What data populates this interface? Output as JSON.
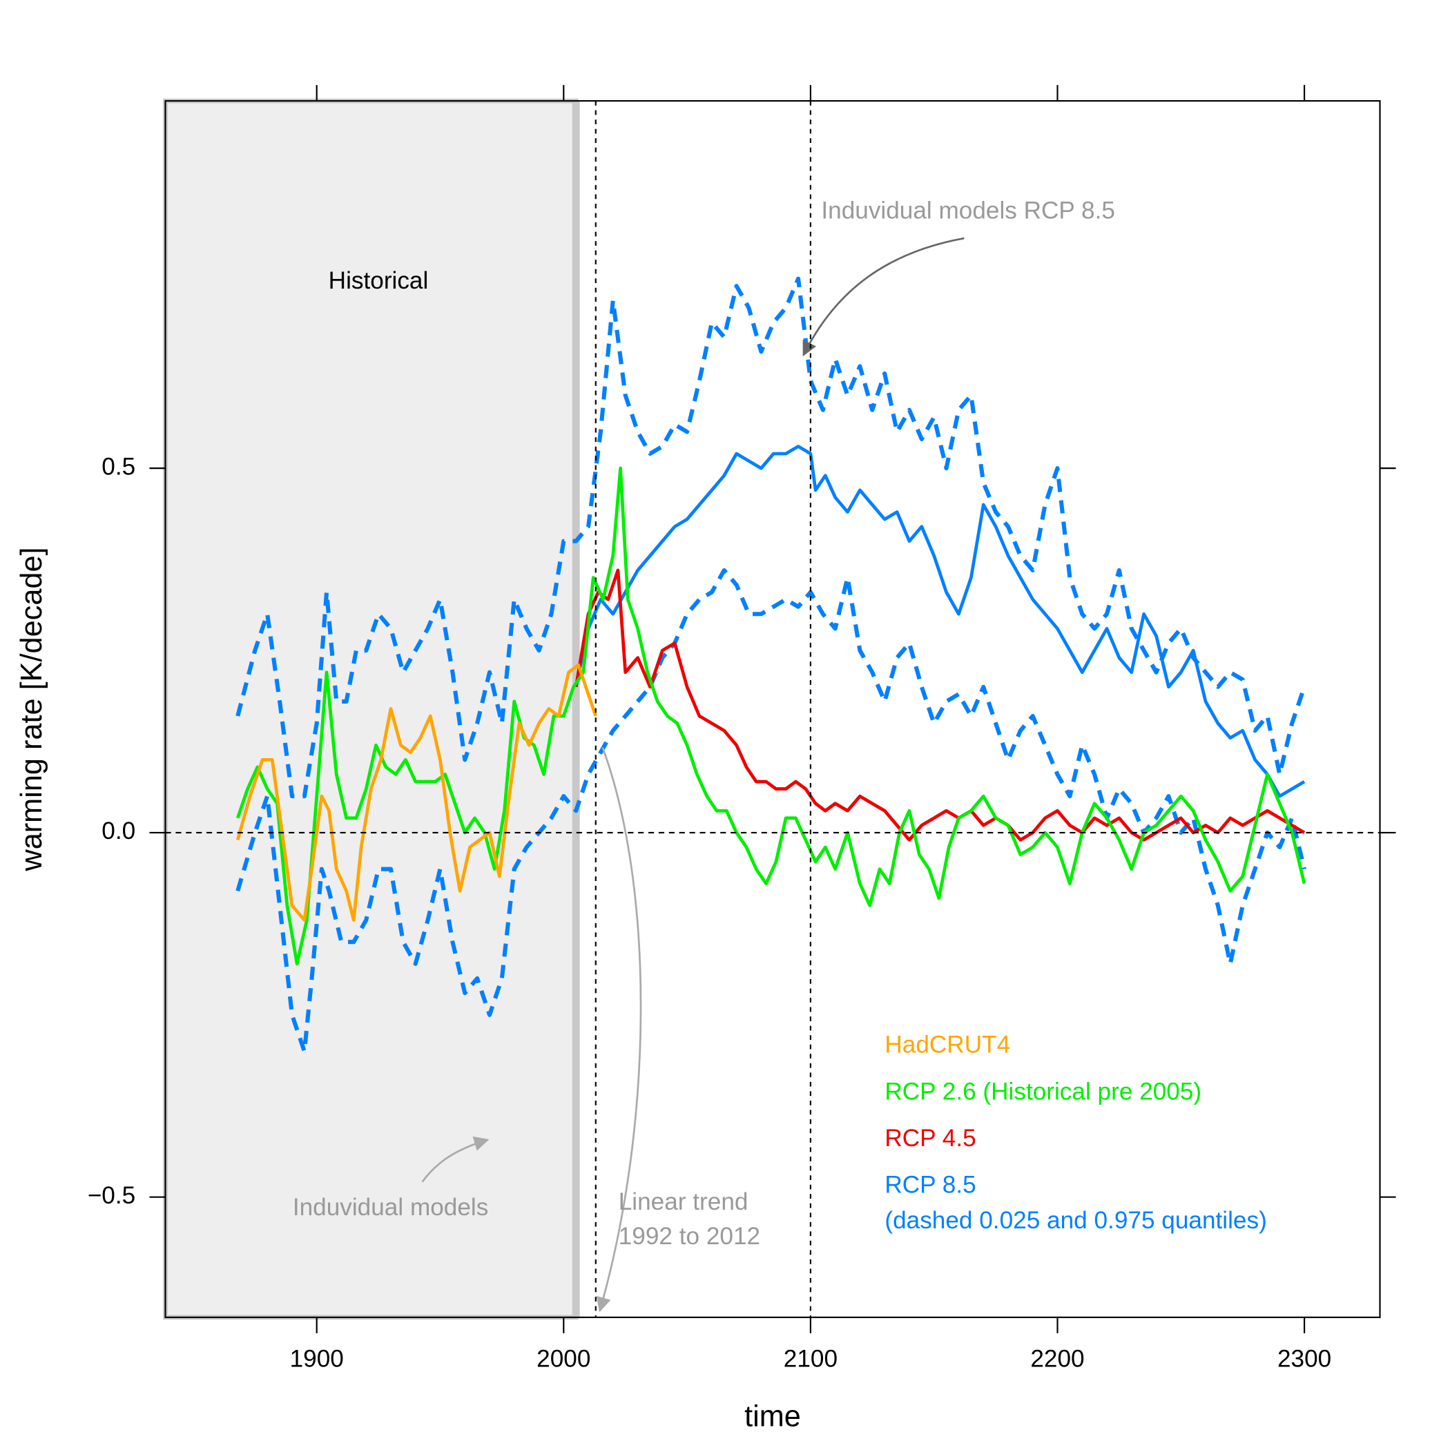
{
  "chart_data": {
    "type": "line",
    "xlabel": "time",
    "ylabel": "warming rate [K/decade]",
    "xlim": [
      1838.7,
      2330.6
    ],
    "ylim": [
      -0.665,
      1.004
    ],
    "xticks": [
      1900,
      2000,
      2100,
      2200,
      2300
    ],
    "yticks": [
      {
        "value": -0.5,
        "label": "−0.5"
      },
      {
        "value": 0,
        "label": "0.0"
      },
      0.5
    ],
    "hline": 0,
    "vlines": [
      2013,
      2100
    ],
    "shaded_until": 2005,
    "annotations": {
      "historical": "Historical",
      "models": "Induvidual models",
      "models_rcp85": "Induvidual models RCP 8.5",
      "trend": [
        "Linear trend",
        "1992 to 2012"
      ],
      "quantile_note": "(dashed 0.025 and 0.975 quantiles)"
    },
    "series": [
      {
        "name": "HadCRUT4",
        "color": "#ffa500",
        "x": [
          1868,
          1873,
          1878,
          1882,
          1886,
          1890,
          1895,
          1898,
          1902,
          1905,
          1908,
          1912,
          1915,
          1918,
          1922,
          1926,
          1930,
          1934,
          1938,
          1942,
          1946,
          1950,
          1954,
          1958,
          1962,
          1966,
          1970,
          1974,
          1978,
          1982,
          1986,
          1990,
          1994,
          1998,
          2002,
          2006,
          2010,
          2013
        ],
        "values": [
          -0.01,
          0.05,
          0.1,
          0.1,
          0.0,
          -0.1,
          -0.12,
          -0.05,
          0.05,
          0.03,
          -0.05,
          -0.08,
          -0.12,
          -0.02,
          0.06,
          0.1,
          0.17,
          0.12,
          0.11,
          0.13,
          0.16,
          0.1,
          0.0,
          -0.08,
          -0.02,
          -0.01,
          0.0,
          -0.06,
          0.05,
          0.15,
          0.12,
          0.15,
          0.17,
          0.16,
          0.22,
          0.23,
          0.19,
          0.16
        ]
      },
      {
        "name": "RCP 2.6 (Historical pre 2005)",
        "color": "#00ee00",
        "x": [
          1868,
          1872,
          1876,
          1880,
          1884,
          1888,
          1892,
          1896,
          1900,
          1904,
          1908,
          1912,
          1916,
          1920,
          1924,
          1928,
          1932,
          1936,
          1940,
          1944,
          1948,
          1952,
          1956,
          1960,
          1964,
          1968,
          1972,
          1976,
          1980,
          1984,
          1988,
          1992,
          1996,
          2000,
          2004,
          2008,
          2012,
          2016,
          2020,
          2023,
          2026,
          2030,
          2034,
          2038,
          2042,
          2046,
          2050,
          2054,
          2058,
          2062,
          2066,
          2070,
          2074,
          2078,
          2082,
          2086,
          2090,
          2094,
          2098,
          2102,
          2106,
          2110,
          2115,
          2120,
          2124,
          2128,
          2132,
          2136,
          2140,
          2144,
          2148,
          2152,
          2156,
          2160,
          2165,
          2170,
          2175,
          2180,
          2185,
          2190,
          2195,
          2200,
          2205,
          2210,
          2215,
          2220,
          2225,
          2230,
          2235,
          2240,
          2245,
          2250,
          2255,
          2260,
          2265,
          2270,
          2275,
          2280,
          2285,
          2290,
          2295,
          2300
        ],
        "values": [
          0.02,
          0.06,
          0.09,
          0.06,
          0.04,
          -0.1,
          -0.18,
          -0.12,
          0.05,
          0.22,
          0.08,
          0.02,
          0.02,
          0.06,
          0.12,
          0.09,
          0.08,
          0.1,
          0.07,
          0.07,
          0.07,
          0.08,
          0.04,
          0.0,
          0.02,
          0.0,
          -0.05,
          0.03,
          0.18,
          0.13,
          0.12,
          0.08,
          0.16,
          0.16,
          0.2,
          0.22,
          0.35,
          0.32,
          0.38,
          0.5,
          0.32,
          0.28,
          0.22,
          0.18,
          0.16,
          0.15,
          0.12,
          0.08,
          0.05,
          0.03,
          0.03,
          0.0,
          -0.02,
          -0.05,
          -0.07,
          -0.04,
          0.02,
          0.02,
          -0.01,
          -0.04,
          -0.02,
          -0.05,
          0.0,
          -0.07,
          -0.1,
          -0.05,
          -0.07,
          0.0,
          0.03,
          -0.03,
          -0.05,
          -0.09,
          -0.02,
          0.02,
          0.03,
          0.05,
          0.02,
          0.01,
          -0.03,
          -0.02,
          0.0,
          -0.02,
          -0.07,
          0.0,
          0.04,
          0.02,
          -0.01,
          -0.05,
          0.0,
          0.01,
          0.03,
          0.05,
          0.03,
          -0.01,
          -0.04,
          -0.08,
          -0.06,
          0.01,
          0.08,
          0.04,
          0.0,
          -0.07
        ]
      },
      {
        "name": "RCP 4.5",
        "color": "#ee0000",
        "x": [
          2005,
          2010,
          2014,
          2018,
          2022,
          2025,
          2030,
          2035,
          2040,
          2045,
          2050,
          2055,
          2060,
          2065,
          2070,
          2074,
          2078,
          2082,
          2086,
          2090,
          2094,
          2098,
          2102,
          2106,
          2110,
          2115,
          2120,
          2125,
          2130,
          2135,
          2140,
          2145,
          2150,
          2155,
          2160,
          2165,
          2170,
          2175,
          2180,
          2185,
          2190,
          2195,
          2200,
          2205,
          2210,
          2215,
          2220,
          2225,
          2230,
          2235,
          2240,
          2245,
          2250,
          2255,
          2260,
          2265,
          2270,
          2275,
          2280,
          2285,
          2290,
          2295,
          2300
        ],
        "values": [
          0.2,
          0.3,
          0.33,
          0.32,
          0.36,
          0.22,
          0.24,
          0.2,
          0.25,
          0.26,
          0.2,
          0.16,
          0.15,
          0.14,
          0.12,
          0.09,
          0.07,
          0.07,
          0.06,
          0.06,
          0.07,
          0.06,
          0.04,
          0.03,
          0.04,
          0.03,
          0.05,
          0.04,
          0.03,
          0.01,
          -0.01,
          0.01,
          0.02,
          0.03,
          0.02,
          0.03,
          0.01,
          0.02,
          0.01,
          -0.01,
          0.0,
          0.02,
          0.03,
          0.01,
          0.0,
          0.02,
          0.01,
          0.02,
          0.0,
          -0.01,
          0.0,
          0.01,
          0.02,
          0.0,
          0.01,
          0.0,
          0.02,
          0.01,
          0.02,
          0.03,
          0.02,
          0.01,
          0.0
        ]
      },
      {
        "name": "RCP 8.5",
        "color": "#0080ff",
        "x": [
          2005,
          2010,
          2015,
          2020,
          2025,
          2030,
          2035,
          2040,
          2045,
          2050,
          2055,
          2060,
          2065,
          2070,
          2075,
          2080,
          2085,
          2090,
          2095,
          2100,
          2102,
          2106,
          2110,
          2115,
          2120,
          2125,
          2130,
          2135,
          2140,
          2145,
          2150,
          2155,
          2160,
          2165,
          2170,
          2175,
          2180,
          2185,
          2190,
          2195,
          2200,
          2205,
          2210,
          2215,
          2220,
          2225,
          2230,
          2235,
          2240,
          2245,
          2250,
          2255,
          2260,
          2265,
          2270,
          2275,
          2280,
          2285,
          2290,
          2295,
          2300
        ],
        "values": [
          0.2,
          0.28,
          0.32,
          0.3,
          0.33,
          0.36,
          0.38,
          0.4,
          0.42,
          0.43,
          0.45,
          0.47,
          0.49,
          0.52,
          0.51,
          0.5,
          0.52,
          0.52,
          0.53,
          0.52,
          0.47,
          0.49,
          0.46,
          0.44,
          0.47,
          0.45,
          0.43,
          0.44,
          0.4,
          0.42,
          0.38,
          0.33,
          0.3,
          0.35,
          0.45,
          0.42,
          0.38,
          0.35,
          0.32,
          0.3,
          0.28,
          0.25,
          0.22,
          0.25,
          0.28,
          0.24,
          0.22,
          0.3,
          0.27,
          0.2,
          0.22,
          0.25,
          0.18,
          0.15,
          0.13,
          0.14,
          0.1,
          0.08,
          0.05,
          0.06,
          0.07
        ]
      }
    ],
    "quantiles": [
      {
        "color": "#0080ff",
        "x": [
          1868,
          1875,
          1880,
          1885,
          1890,
          1895,
          1900,
          1904,
          1908,
          1912,
          1916,
          1920,
          1925,
          1930,
          1935,
          1940,
          1945,
          1950,
          1955,
          1960,
          1965,
          1970,
          1975,
          1980,
          1985,
          1990,
          1995,
          2000,
          2005,
          2010,
          2015,
          2020,
          2025,
          2030,
          2035,
          2040,
          2045,
          2050,
          2055,
          2060,
          2065,
          2070,
          2075,
          2080,
          2085,
          2090,
          2095,
          2100,
          2105,
          2110,
          2115,
          2120,
          2125,
          2130,
          2135,
          2140,
          2145,
          2150,
          2155,
          2160,
          2165,
          2170,
          2175,
          2180,
          2185,
          2190,
          2195,
          2200,
          2205,
          2210,
          2215,
          2220,
          2225,
          2230,
          2235,
          2240,
          2245,
          2250,
          2255,
          2260,
          2265,
          2270,
          2275,
          2280,
          2285,
          2290,
          2295,
          2300
        ],
        "values": [
          0.16,
          0.25,
          0.3,
          0.18,
          0.05,
          0.05,
          0.15,
          0.33,
          0.18,
          0.18,
          0.25,
          0.25,
          0.3,
          0.28,
          0.22,
          0.25,
          0.28,
          0.32,
          0.22,
          0.1,
          0.15,
          0.22,
          0.15,
          0.32,
          0.28,
          0.25,
          0.3,
          0.4,
          0.4,
          0.42,
          0.55,
          0.73,
          0.6,
          0.55,
          0.52,
          0.53,
          0.56,
          0.55,
          0.62,
          0.7,
          0.68,
          0.75,
          0.72,
          0.66,
          0.7,
          0.72,
          0.76,
          0.62,
          0.58,
          0.65,
          0.6,
          0.64,
          0.58,
          0.63,
          0.55,
          0.58,
          0.54,
          0.57,
          0.5,
          0.58,
          0.6,
          0.48,
          0.44,
          0.42,
          0.38,
          0.36,
          0.45,
          0.5,
          0.35,
          0.3,
          0.28,
          0.3,
          0.36,
          0.28,
          0.25,
          0.22,
          0.26,
          0.28,
          0.24,
          0.22,
          0.2,
          0.22,
          0.21,
          0.14,
          0.16,
          0.08,
          0.15,
          0.2
        ]
      },
      {
        "color": "#0080ff",
        "x": [
          1868,
          1875,
          1880,
          1885,
          1890,
          1895,
          1898,
          1902,
          1905,
          1910,
          1915,
          1920,
          1925,
          1930,
          1935,
          1940,
          1945,
          1950,
          1955,
          1960,
          1965,
          1970,
          1975,
          1980,
          1985,
          1990,
          1995,
          2000,
          2005,
          2010,
          2015,
          2020,
          2025,
          2030,
          2035,
          2040,
          2045,
          2050,
          2055,
          2060,
          2065,
          2070,
          2075,
          2080,
          2085,
          2090,
          2095,
          2100,
          2105,
          2110,
          2115,
          2120,
          2125,
          2130,
          2135,
          2140,
          2145,
          2150,
          2155,
          2160,
          2165,
          2170,
          2175,
          2180,
          2185,
          2190,
          2195,
          2200,
          2205,
          2210,
          2215,
          2220,
          2225,
          2230,
          2235,
          2240,
          2245,
          2250,
          2255,
          2260,
          2265,
          2270,
          2275,
          2280,
          2285,
          2290,
          2295,
          2300
        ],
        "values": [
          -0.08,
          0.0,
          0.05,
          -0.1,
          -0.25,
          -0.3,
          -0.2,
          -0.05,
          -0.08,
          -0.15,
          -0.15,
          -0.12,
          -0.05,
          -0.05,
          -0.15,
          -0.18,
          -0.12,
          -0.05,
          -0.15,
          -0.22,
          -0.2,
          -0.25,
          -0.2,
          -0.05,
          -0.02,
          0.0,
          0.02,
          0.05,
          0.03,
          0.08,
          0.11,
          0.14,
          0.16,
          0.18,
          0.2,
          0.24,
          0.26,
          0.3,
          0.32,
          0.33,
          0.36,
          0.34,
          0.3,
          0.3,
          0.31,
          0.32,
          0.31,
          0.33,
          0.3,
          0.28,
          0.35,
          0.25,
          0.22,
          0.18,
          0.24,
          0.26,
          0.2,
          0.15,
          0.18,
          0.19,
          0.16,
          0.2,
          0.15,
          0.1,
          0.14,
          0.16,
          0.12,
          0.08,
          0.05,
          0.12,
          0.08,
          0.02,
          0.06,
          0.04,
          0.0,
          0.02,
          0.05,
          0.0,
          0.02,
          -0.05,
          -0.1,
          -0.18,
          -0.1,
          -0.05,
          0.0,
          -0.02,
          0.02,
          -0.05
        ]
      }
    ]
  }
}
